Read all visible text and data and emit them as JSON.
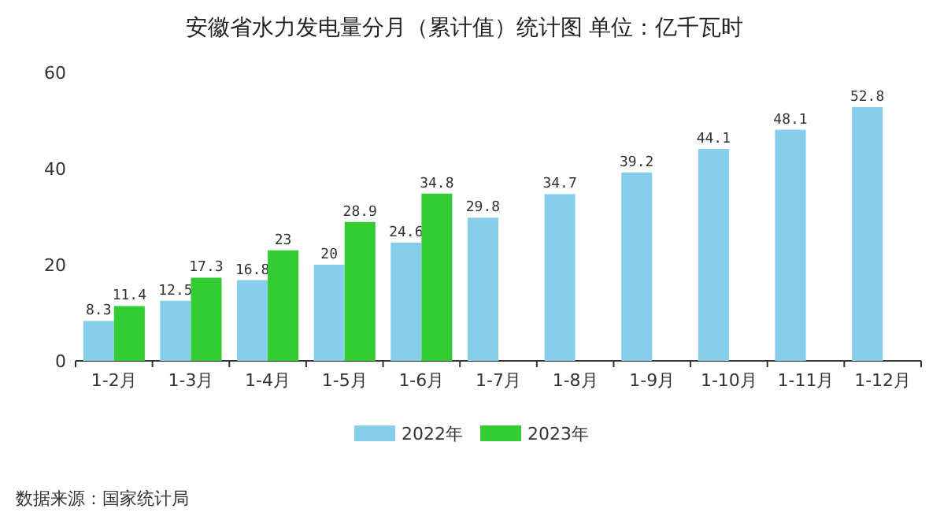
{
  "chart_data": {
    "type": "bar",
    "title": "安徽省水力发电量分月（累计值）统计图 单位：亿千瓦时",
    "categories": [
      "1-2月",
      "1-3月",
      "1-4月",
      "1-5月",
      "1-6月",
      "1-7月",
      "1-8月",
      "1-9月",
      "1-10月",
      "1-11月",
      "1-12月"
    ],
    "series": [
      {
        "name": "2022年",
        "color": "#87ceeb",
        "values": [
          8.3,
          12.5,
          16.8,
          20,
          24.6,
          29.8,
          34.7,
          39.2,
          44.1,
          48.1,
          52.8
        ]
      },
      {
        "name": "2023年",
        "color": "#33cc33",
        "values": [
          11.4,
          17.3,
          23,
          28.9,
          34.8,
          null,
          null,
          null,
          null,
          null,
          null
        ]
      }
    ],
    "ylim": [
      0,
      60
    ],
    "yticks": [
      0,
      20,
      40,
      60
    ],
    "data_labels": true,
    "legend": "bottom",
    "grid": false,
    "annotations": [
      "数据来源：国家统计局"
    ]
  }
}
